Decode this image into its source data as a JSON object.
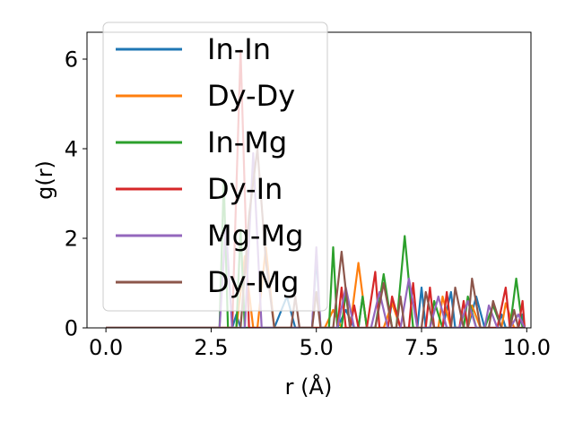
{
  "chart_data": {
    "type": "line",
    "xlabel": "r (Å)",
    "ylabel": "g(r)",
    "xlim": [
      -0.45,
      10.1
    ],
    "ylim": [
      0,
      6.6
    ],
    "xticks": [
      0.0,
      2.5,
      5.0,
      7.5,
      10.0
    ],
    "xtick_labels": [
      "0.0",
      "2.5",
      "5.0",
      "7.5",
      "10.0"
    ],
    "yticks": [
      0,
      2,
      4,
      6
    ],
    "ytick_labels": [
      "0",
      "2",
      "4",
      "6"
    ],
    "grid": false,
    "legend_position": "top-left",
    "series": [
      {
        "name": "In-In",
        "color": "#1f77b4",
        "points": [
          [
            0,
            0
          ],
          [
            2.7,
            0
          ],
          [
            3.0,
            0
          ],
          [
            3.1,
            0.3
          ],
          [
            3.2,
            0
          ],
          [
            3.6,
            0
          ],
          [
            4.0,
            0
          ],
          [
            4.3,
            0.7
          ],
          [
            4.5,
            0
          ],
          [
            4.9,
            0
          ],
          [
            5.0,
            1.6
          ],
          [
            5.1,
            0
          ],
          [
            5.5,
            0
          ],
          [
            5.7,
            0.4
          ],
          [
            5.9,
            0
          ],
          [
            6.0,
            0
          ],
          [
            6.1,
            0.7
          ],
          [
            6.2,
            0
          ],
          [
            6.7,
            0
          ],
          [
            6.8,
            0.6
          ],
          [
            7.0,
            0
          ],
          [
            7.4,
            0
          ],
          [
            7.5,
            0.9
          ],
          [
            7.6,
            0
          ],
          [
            8.0,
            0
          ],
          [
            8.2,
            0.8
          ],
          [
            8.3,
            0
          ],
          [
            8.6,
            0
          ],
          [
            8.8,
            0.7
          ],
          [
            9.0,
            0
          ],
          [
            9.3,
            0
          ],
          [
            9.4,
            0.3
          ],
          [
            9.5,
            0
          ],
          [
            9.8,
            0
          ],
          [
            9.9,
            0.3
          ],
          [
            9.95,
            0
          ]
        ]
      },
      {
        "name": "Dy-Dy",
        "color": "#ff7f0e",
        "points": [
          [
            0,
            0
          ],
          [
            3.1,
            0
          ],
          [
            3.3,
            1.6
          ],
          [
            3.5,
            0
          ],
          [
            3.6,
            0
          ],
          [
            3.8,
            1.8
          ],
          [
            4.0,
            0
          ],
          [
            5.2,
            0
          ],
          [
            5.4,
            0.4
          ],
          [
            5.6,
            0
          ],
          [
            5.8,
            0
          ],
          [
            6.0,
            1.45
          ],
          [
            6.2,
            0
          ],
          [
            6.6,
            0
          ],
          [
            6.8,
            0.55
          ],
          [
            7.0,
            0
          ],
          [
            7.9,
            0
          ],
          [
            8.0,
            0.7
          ],
          [
            8.2,
            0
          ],
          [
            8.6,
            0
          ],
          [
            8.7,
            0.5
          ],
          [
            8.9,
            0
          ],
          [
            9.4,
            0
          ],
          [
            9.5,
            0.55
          ],
          [
            9.7,
            0
          ],
          [
            9.95,
            0
          ]
        ]
      },
      {
        "name": "In-Mg",
        "color": "#2ca02c",
        "points": [
          [
            0,
            0
          ],
          [
            2.7,
            0
          ],
          [
            2.8,
            3.3
          ],
          [
            2.9,
            0
          ],
          [
            3.1,
            0
          ],
          [
            3.2,
            2.2
          ],
          [
            3.3,
            0
          ],
          [
            5.3,
            0
          ],
          [
            5.4,
            1.8
          ],
          [
            5.5,
            0
          ],
          [
            5.6,
            0
          ],
          [
            5.7,
            0.8
          ],
          [
            5.8,
            0
          ],
          [
            6.0,
            0
          ],
          [
            6.1,
            0.7
          ],
          [
            6.2,
            0
          ],
          [
            6.4,
            0
          ],
          [
            6.6,
            1.2
          ],
          [
            6.8,
            0
          ],
          [
            6.9,
            0
          ],
          [
            7.1,
            2.05
          ],
          [
            7.3,
            0
          ],
          [
            7.7,
            0
          ],
          [
            7.8,
            0.6
          ],
          [
            8.0,
            0
          ],
          [
            8.5,
            0
          ],
          [
            8.6,
            0.7
          ],
          [
            8.8,
            0
          ],
          [
            9.0,
            0
          ],
          [
            9.2,
            0.5
          ],
          [
            9.4,
            0
          ],
          [
            9.6,
            0
          ],
          [
            9.75,
            1.1
          ],
          [
            9.9,
            0
          ],
          [
            9.95,
            0
          ]
        ]
      },
      {
        "name": "Dy-In",
        "color": "#d62728",
        "points": [
          [
            0,
            0
          ],
          [
            3.0,
            0
          ],
          [
            3.1,
            3.1
          ],
          [
            3.2,
            6.2
          ],
          [
            3.3,
            3.0
          ],
          [
            3.4,
            0
          ],
          [
            5.5,
            0
          ],
          [
            5.6,
            0.9
          ],
          [
            5.7,
            0
          ],
          [
            5.8,
            0
          ],
          [
            5.9,
            0.5
          ],
          [
            6.0,
            0
          ],
          [
            6.2,
            0
          ],
          [
            6.4,
            1.25
          ],
          [
            6.5,
            0
          ],
          [
            6.7,
            0
          ],
          [
            6.8,
            0.7
          ],
          [
            7.0,
            0
          ],
          [
            7.2,
            0
          ],
          [
            7.3,
            1.0
          ],
          [
            7.4,
            0
          ],
          [
            7.6,
            0
          ],
          [
            7.7,
            0.9
          ],
          [
            7.8,
            0
          ],
          [
            8.0,
            0
          ],
          [
            8.1,
            0.8
          ],
          [
            8.2,
            0
          ],
          [
            8.4,
            0
          ],
          [
            8.5,
            0.6
          ],
          [
            8.6,
            0
          ],
          [
            9.3,
            0
          ],
          [
            9.5,
            0.9
          ],
          [
            9.6,
            0
          ],
          [
            9.8,
            0
          ],
          [
            9.9,
            0.6
          ],
          [
            9.95,
            0
          ]
        ]
      },
      {
        "name": "Mg-Mg",
        "color": "#9467bd",
        "points": [
          [
            0,
            0
          ],
          [
            2.7,
            0
          ],
          [
            2.85,
            2.3
          ],
          [
            3.0,
            0
          ],
          [
            3.3,
            0
          ],
          [
            3.5,
            3.9
          ],
          [
            3.7,
            0
          ],
          [
            4.9,
            0
          ],
          [
            5.0,
            1.8
          ],
          [
            5.1,
            0
          ],
          [
            5.5,
            0
          ],
          [
            5.7,
            0.9
          ],
          [
            5.9,
            0
          ],
          [
            6.3,
            0
          ],
          [
            6.5,
            0.8
          ],
          [
            6.7,
            0
          ],
          [
            7.0,
            0
          ],
          [
            7.2,
            1.1
          ],
          [
            7.4,
            0
          ],
          [
            7.7,
            0
          ],
          [
            7.9,
            0.7
          ],
          [
            8.1,
            0
          ],
          [
            8.4,
            0
          ],
          [
            8.6,
            0.6
          ],
          [
            8.8,
            0
          ],
          [
            9.0,
            0
          ],
          [
            9.1,
            0.5
          ],
          [
            9.3,
            0
          ],
          [
            9.6,
            0
          ],
          [
            9.8,
            0.3
          ],
          [
            9.95,
            0
          ]
        ]
      },
      {
        "name": "Dy-Mg",
        "color": "#8c564b",
        "points": [
          [
            0,
            0
          ],
          [
            3.2,
            0
          ],
          [
            3.4,
            2.5
          ],
          [
            3.6,
            4.0
          ],
          [
            3.8,
            1.5
          ],
          [
            4.0,
            0
          ],
          [
            4.4,
            0
          ],
          [
            4.5,
            0.7
          ],
          [
            4.6,
            0
          ],
          [
            4.9,
            0
          ],
          [
            5.0,
            0.8
          ],
          [
            5.1,
            0
          ],
          [
            5.4,
            0
          ],
          [
            5.6,
            1.7
          ],
          [
            5.8,
            0
          ],
          [
            6.4,
            0
          ],
          [
            6.6,
            1.0
          ],
          [
            6.8,
            0
          ],
          [
            6.9,
            0
          ],
          [
            7.0,
            0.7
          ],
          [
            7.1,
            0
          ],
          [
            7.5,
            0
          ],
          [
            7.6,
            0.8
          ],
          [
            7.8,
            0
          ],
          [
            8.2,
            0
          ],
          [
            8.3,
            0.9
          ],
          [
            8.5,
            0
          ],
          [
            8.6,
            0
          ],
          [
            8.7,
            1.1
          ],
          [
            8.9,
            0
          ],
          [
            9.1,
            0
          ],
          [
            9.2,
            0.6
          ],
          [
            9.4,
            0
          ],
          [
            9.6,
            0
          ],
          [
            9.7,
            0.4
          ],
          [
            9.8,
            0
          ],
          [
            9.95,
            0
          ]
        ]
      }
    ]
  }
}
